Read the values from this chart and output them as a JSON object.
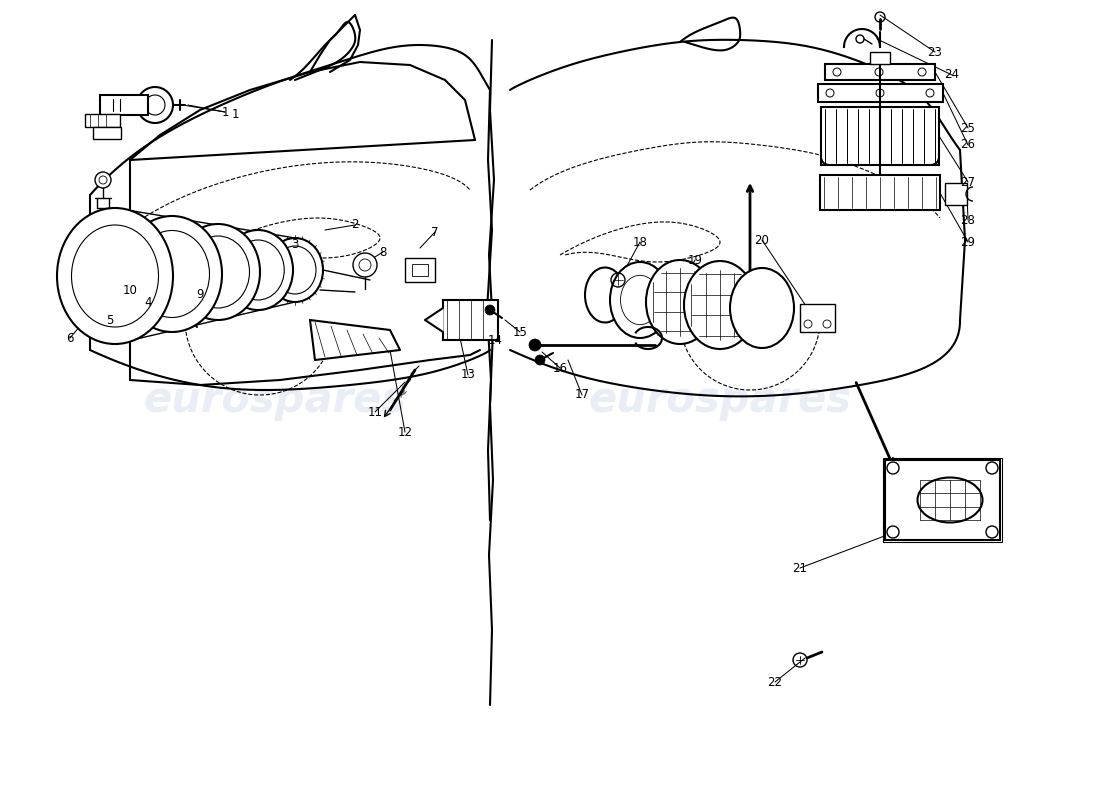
{
  "background_color": "#ffffff",
  "line_color": "#000000",
  "watermark_text": "eurospares",
  "watermark_color": "#c8d4e8",
  "watermark_alpha": 0.4,
  "font_size_labels": 8.5,
  "dpi": 100,
  "figsize": [
    11.0,
    8.0
  ]
}
